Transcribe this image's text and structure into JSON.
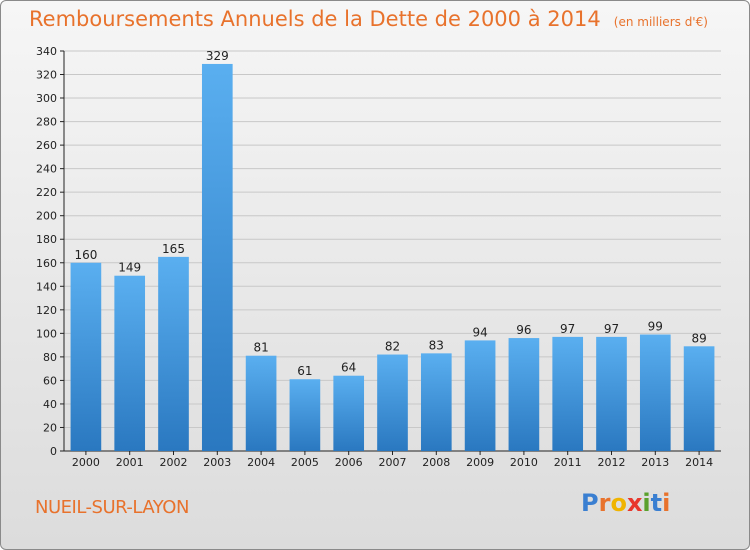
{
  "header": {
    "title": "Remboursements Annuels de la Dette de 2000 à 2014",
    "subtitle": "(en milliers d'€)"
  },
  "footer": {
    "commune": "NUEIL-SUR-LAYON",
    "brand_letters": [
      {
        "ch": "P",
        "color": "#3a7fd1"
      },
      {
        "ch": "r",
        "color": "#e8722c"
      },
      {
        "ch": "o",
        "color": "#f0b400"
      },
      {
        "ch": "x",
        "color": "#e8372c"
      },
      {
        "ch": "i",
        "color": "#5aa02c"
      },
      {
        "ch": "t",
        "color": "#3a7fd1"
      },
      {
        "ch": "i",
        "color": "#e8722c"
      }
    ]
  },
  "colors": {
    "bar_top": "#5aaff0",
    "bar_bottom": "#2a78c0",
    "title": "#e8722c",
    "axis": "#222222",
    "grid": "#c8c8c8"
  },
  "chart_data": {
    "type": "bar",
    "categories": [
      "2000",
      "2001",
      "2002",
      "2003",
      "2004",
      "2005",
      "2006",
      "2007",
      "2008",
      "2009",
      "2010",
      "2011",
      "2012",
      "2013",
      "2014"
    ],
    "values": [
      160,
      149,
      165,
      329,
      81,
      61,
      64,
      82,
      83,
      94,
      96,
      97,
      97,
      99,
      89
    ],
    "ylim": [
      0,
      340
    ],
    "yticks": [
      0,
      20,
      40,
      60,
      80,
      100,
      120,
      140,
      160,
      180,
      200,
      220,
      240,
      260,
      280,
      300,
      320,
      340
    ],
    "grid": true,
    "data_labels": true
  }
}
